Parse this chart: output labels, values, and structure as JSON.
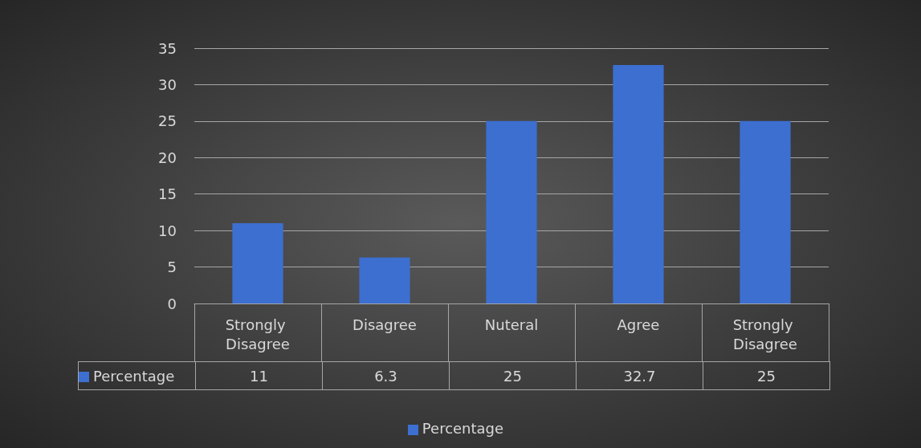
{
  "chart_data": {
    "type": "bar",
    "categories": [
      "Strongly Disagree",
      "Disagree",
      "Nuteral",
      "Agree",
      "Strongly Disagree"
    ],
    "series": [
      {
        "name": "Percentage",
        "color": "#3d6fd1",
        "values": [
          11,
          6.3,
          25,
          32.7,
          25
        ]
      }
    ],
    "ylim": [
      0,
      35
    ],
    "yticks": [
      0,
      5,
      10,
      15,
      20,
      25,
      30,
      35
    ],
    "grid": "y",
    "legend": "bottom",
    "data_labels": true
  }
}
